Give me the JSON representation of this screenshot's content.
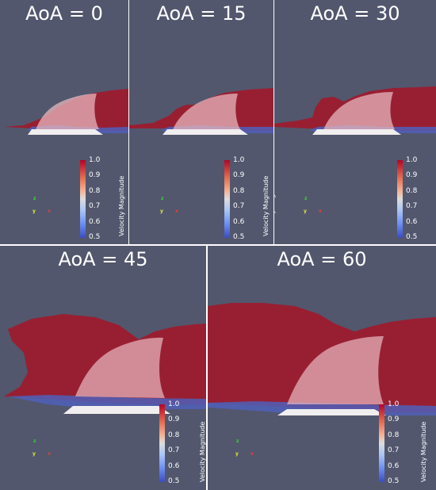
{
  "panels": [
    {
      "title": "AoA = 0"
    },
    {
      "title": "AoA = 15"
    },
    {
      "title": "AoA = 30"
    },
    {
      "title": "AoA = 45"
    },
    {
      "title": "AoA = 60"
    }
  ],
  "colorbar": {
    "label": "Velocity Magnitude",
    "ticks": [
      "1.0",
      "0.9",
      "0.8",
      "0.7",
      "0.6",
      "0.5"
    ]
  },
  "axes": {
    "z": "z",
    "y": "y",
    "x": "x"
  },
  "colors": {
    "background": "#52576d",
    "wake_red": "#9e1a2e",
    "plate_white": "#f0eeee",
    "low_velocity_blue": "#3b4cc0"
  }
}
